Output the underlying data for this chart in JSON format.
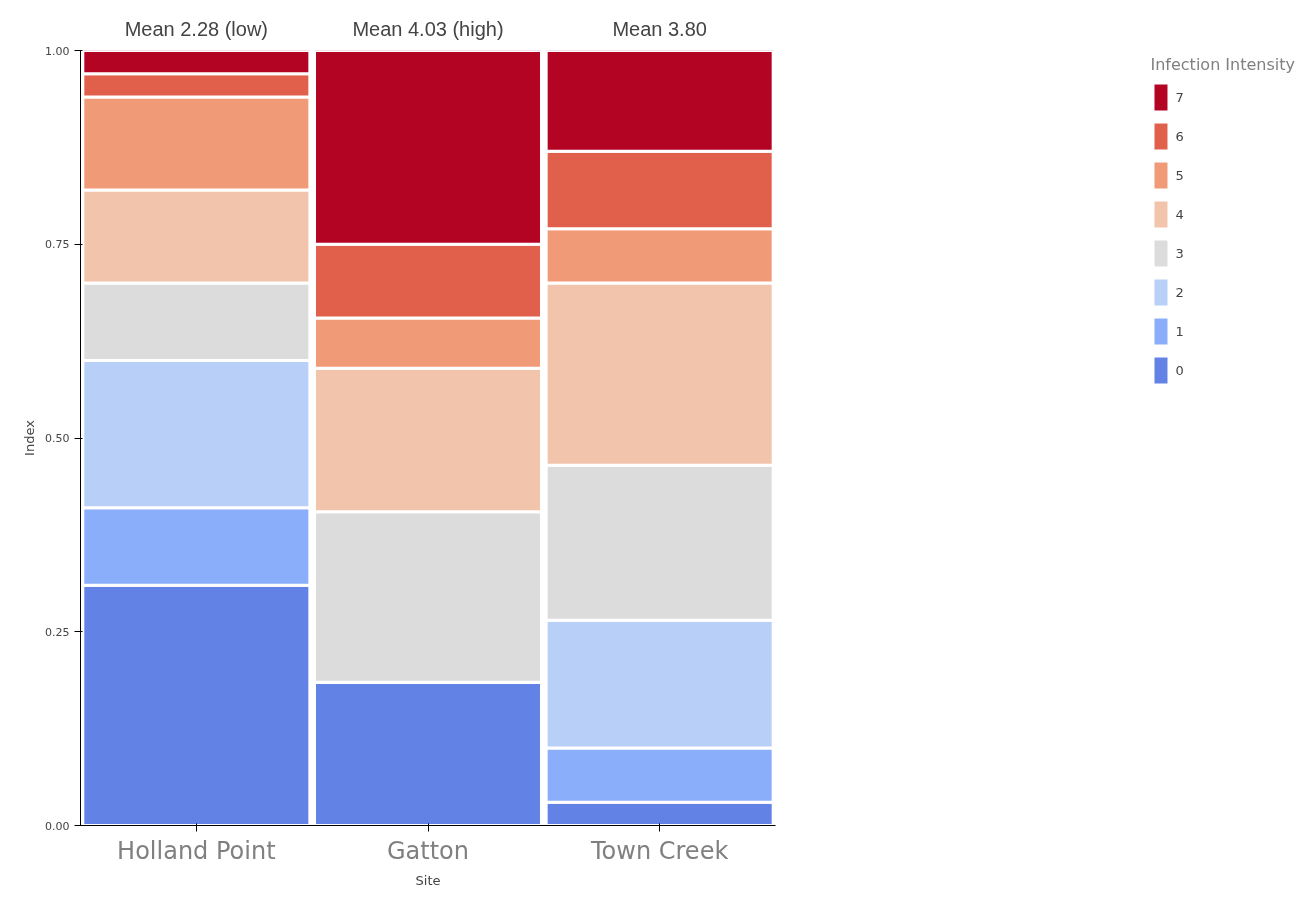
{
  "chart_data": {
    "type": "bar",
    "stacked": true,
    "xlabel": "Site",
    "ylabel": "Index",
    "legend_title": "Infection Intensity",
    "legend": "right",
    "categories": [
      "Holland Point",
      "Gatton",
      "Town Creek"
    ],
    "ylim": [
      0,
      1
    ],
    "yticks": [
      {
        "value": 0,
        "label": "0.00"
      },
      {
        "value": 0.25,
        "label": "0.25"
      },
      {
        "value": 0.5,
        "label": "0.50"
      },
      {
        "value": 0.75,
        "label": "0.75"
      },
      {
        "value": 1,
        "label": "1.00"
      }
    ],
    "annotations": [
      "Mean 2.28 (low)",
      "Mean 4.03 (high)",
      "Mean 3.80"
    ],
    "series": [
      {
        "name": "0",
        "color": "#6282e6",
        "values": [
          0.31,
          0.185,
          0.03
        ]
      },
      {
        "name": "1",
        "color": "#8aaefa",
        "values": [
          0.1,
          0,
          0.07
        ]
      },
      {
        "name": "2",
        "color": "#b8cff8",
        "values": [
          0.19,
          0,
          0.165
        ]
      },
      {
        "name": "3",
        "color": "#dcdcdc",
        "values": [
          0.1,
          0.22,
          0.2
        ]
      },
      {
        "name": "4",
        "color": "#f2c4ab",
        "values": [
          0.12,
          0.185,
          0.235
        ]
      },
      {
        "name": "5",
        "color": "#f09a78",
        "values": [
          0.12,
          0.065,
          0.07
        ]
      },
      {
        "name": "6",
        "color": "#e0604c",
        "values": [
          0.03,
          0.095,
          0.1
        ]
      },
      {
        "name": "7",
        "color": "#b40424",
        "values": [
          0.03,
          0.25,
          0.13
        ]
      }
    ]
  }
}
